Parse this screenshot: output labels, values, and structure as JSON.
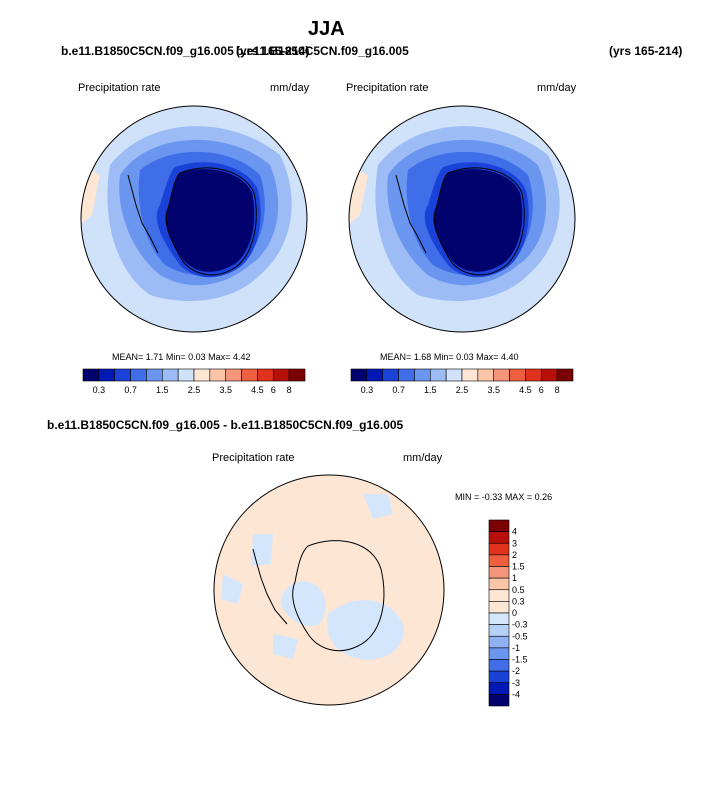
{
  "title": "JJA",
  "panel_top_left": {
    "case": "b.e11.B1850C5CN.f09_g16.005",
    "years": "(yrs 165-214)",
    "field": "Precipitation rate",
    "units": "mm/day",
    "stats": {
      "mean_label": "MEAN=",
      "mean": "1.71",
      "min_label": "Min=",
      "min": "0.03",
      "max_label": "Max=",
      "max": "4.42"
    }
  },
  "panel_top_right": {
    "case": "b.e11.B1850C5CN.f09_g16.005",
    "years": "(yrs 165-214)",
    "field": "Precipitation rate",
    "units": "mm/day",
    "stats": {
      "mean_label": "MEAN=",
      "mean": "1.68",
      "min_label": "Min=",
      "min": "0.03",
      "max_label": "Max=",
      "max": "4.40"
    }
  },
  "panel_diff": {
    "case": "b.e11.B1850C5CN.f09_g16.005 - b.e11.B1850C5CN.f09_g16.005",
    "field": "Precipitation rate",
    "units": "mm/day",
    "stats": {
      "min_label": "MIN =",
      "min": "-0.33",
      "max_label": "MAX =",
      "max": "0.26"
    }
  },
  "colorbar_main": {
    "colors": [
      "#02026e",
      "#0018b4",
      "#1a42d8",
      "#3f6ee8",
      "#6b96f0",
      "#9dbcf5",
      "#cfe2fa",
      "#fde6d4",
      "#fbc5a8",
      "#f5957a",
      "#ed5f3f",
      "#e0321c",
      "#b81008",
      "#7b0202"
    ],
    "tick_labels": [
      "0.3",
      "0.7",
      "1.5",
      "2.5",
      "3.5",
      "4.5",
      "6",
      "8"
    ],
    "tick_positions": [
      1,
      3,
      5,
      7,
      9,
      11,
      12,
      13
    ]
  },
  "colorbar_diff": {
    "colors": [
      "#7b0202",
      "#b81008",
      "#e0321c",
      "#ed5f3f",
      "#f5957a",
      "#fbc5a8",
      "#fde6d4",
      "#fde6d4",
      "#d4e6fb",
      "#b6d0f7",
      "#8fb2f2",
      "#6b96f0",
      "#3f6ee8",
      "#1a42d8",
      "#0018b4",
      "#02026e"
    ],
    "tick_labels": [
      "4",
      "3",
      "2",
      "1.5",
      "1",
      "0.5",
      "0.3",
      "0",
      "-0.3",
      "-0.5",
      "-1",
      "-1.5",
      "-2",
      "-3",
      "-4"
    ]
  }
}
